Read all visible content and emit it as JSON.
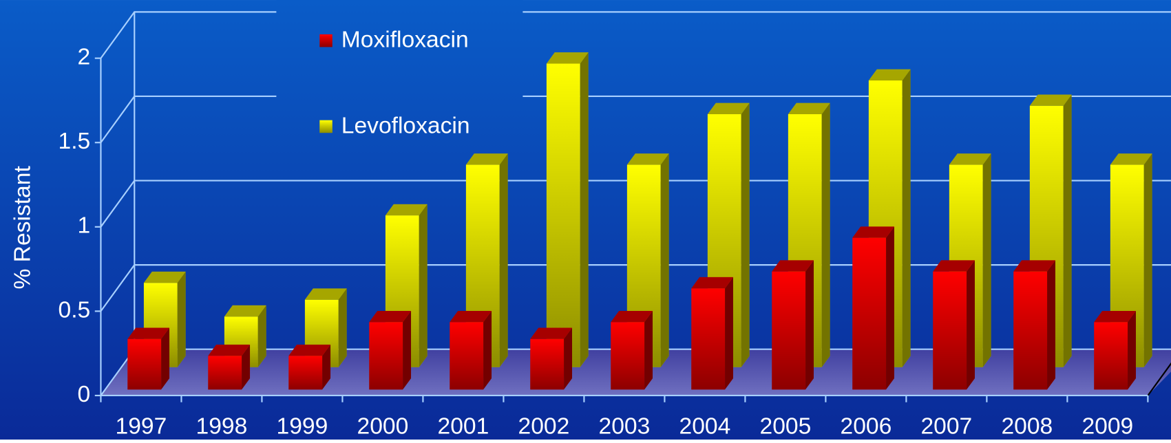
{
  "chart_data": {
    "type": "bar3d",
    "y_label": "% Resistant",
    "categories": [
      "1997",
      "1998",
      "1999",
      "2000",
      "2001",
      "2002",
      "2003",
      "2004",
      "2005",
      "2006",
      "2007",
      "2008",
      "2009"
    ],
    "series": [
      {
        "name": "Moxifloxacin",
        "color": "#ff0000",
        "values": [
          0.3,
          0.2,
          0.2,
          0.4,
          0.4,
          0.3,
          0.4,
          0.6,
          0.7,
          0.9,
          0.7,
          0.7,
          0.4
        ]
      },
      {
        "name": "Levofloxacin",
        "color": "#ffff00",
        "values": [
          0.5,
          0.3,
          0.4,
          0.9,
          1.2,
          1.8,
          1.2,
          1.5,
          1.5,
          1.7,
          1.2,
          1.55,
          1.2
        ]
      }
    ],
    "ylim": [
      0,
      2
    ],
    "yticks": [
      0,
      0.5,
      1,
      1.5,
      2
    ],
    "grid": true,
    "legend": "top"
  }
}
